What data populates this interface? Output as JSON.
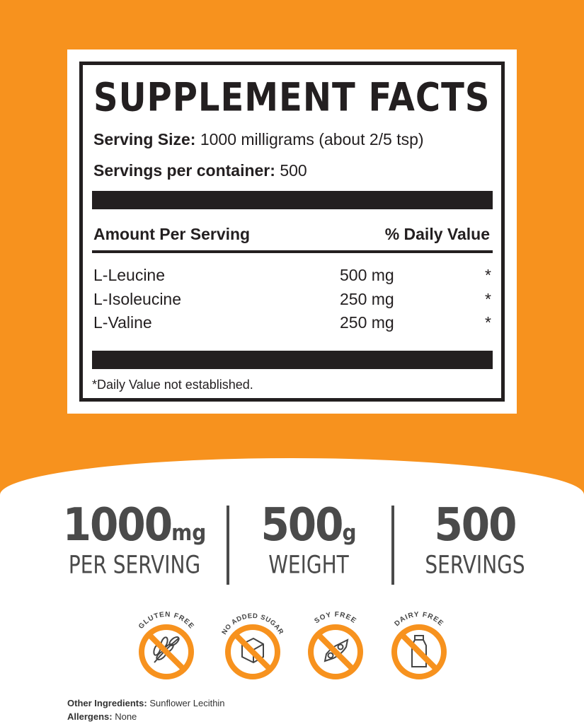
{
  "facts": {
    "title": "SUPPLEMENT FACTS",
    "serving_size_label": "Serving Size:",
    "serving_size_value": "1000 milligrams (about 2/5 tsp)",
    "servings_label": "Servings per container:",
    "servings_value": "500",
    "col_amount": "Amount Per Serving",
    "col_dv": "% Daily Value",
    "rows": [
      {
        "name": "L-Leucine",
        "amount": "500 mg",
        "dv": "*"
      },
      {
        "name": "L-Isoleucine",
        "amount": "250 mg",
        "dv": "*"
      },
      {
        "name": "L-Valine",
        "amount": "250 mg",
        "dv": "*"
      }
    ],
    "footnote": "*Daily Value not established."
  },
  "stats": [
    {
      "value": "1000",
      "unit": "mg",
      "label": "PER SERVING"
    },
    {
      "value": "500",
      "unit": "g",
      "label": "WEIGHT"
    },
    {
      "value": "500",
      "unit": "",
      "label": "SERVINGS"
    }
  ],
  "badges": [
    {
      "label": "GLUTEN FREE",
      "icon": "wheat-icon"
    },
    {
      "label": "NO ADDED SUGAR",
      "icon": "sugar-cube-icon"
    },
    {
      "label": "SOY FREE",
      "icon": "soybean-icon"
    },
    {
      "label": "DAIRY FREE",
      "icon": "milk-bottle-icon"
    }
  ],
  "other_ingredients_label": "Other Ingredients:",
  "other_ingredients_value": "Sunflower Lecithin",
  "allergens_label": "Allergens:",
  "allergens_value": "None",
  "colors": {
    "orange": "#f7921e",
    "dark": "#231f20",
    "gray": "#4a4a4a"
  }
}
